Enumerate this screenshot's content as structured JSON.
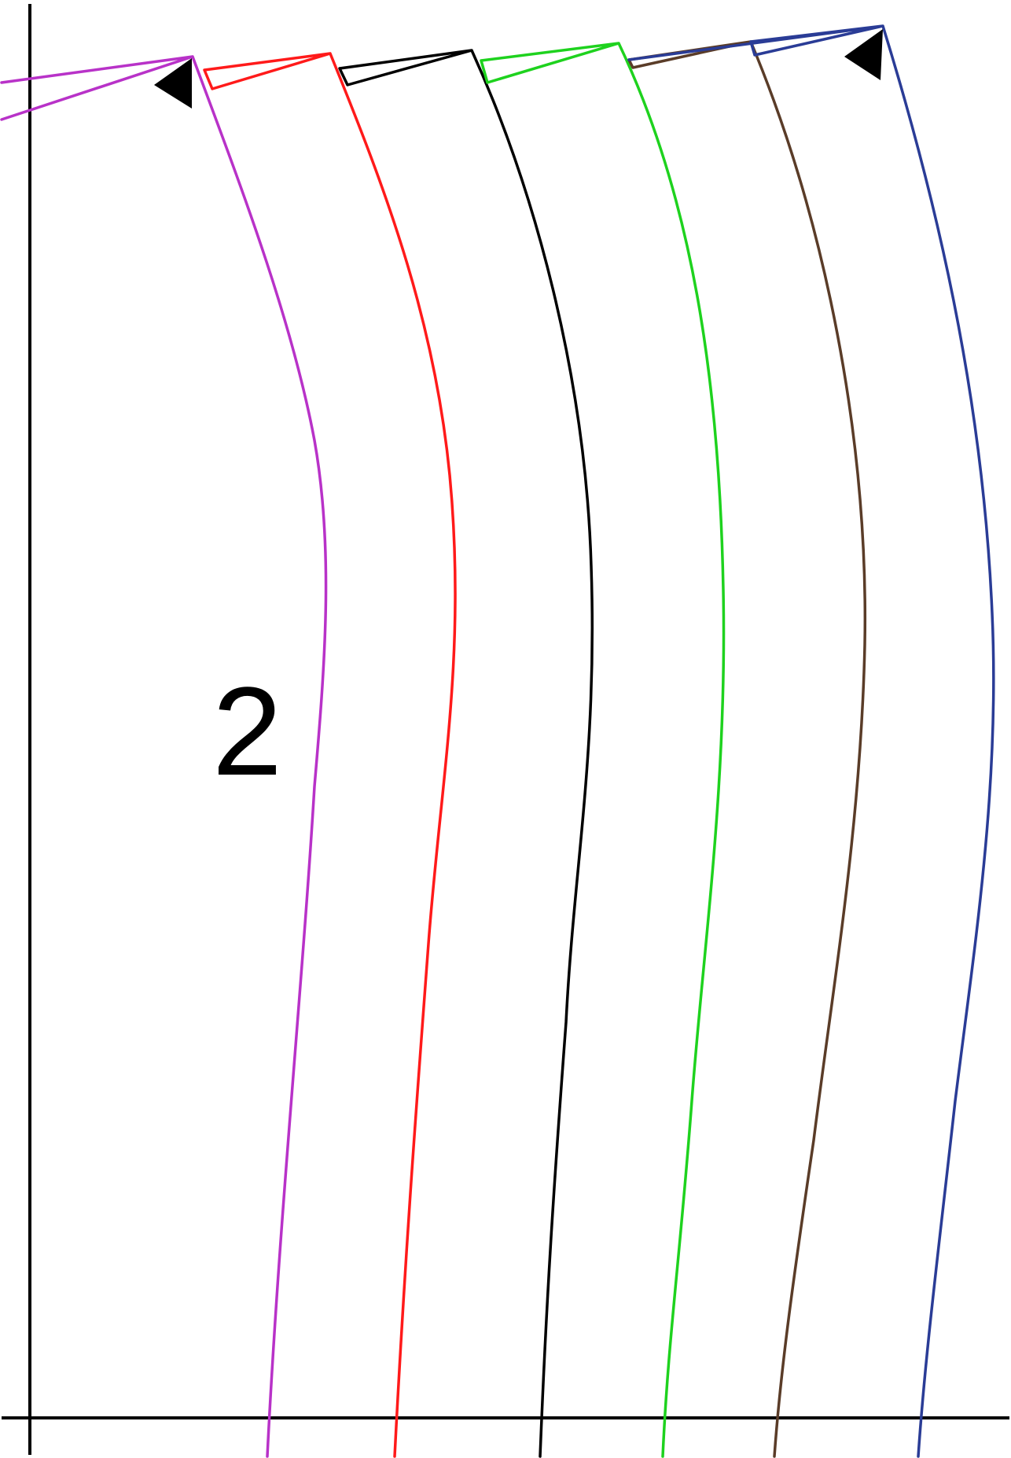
{
  "figure": {
    "label": "2"
  },
  "curves": [
    {
      "id": "magenta",
      "color": "#b832c8"
    },
    {
      "id": "red",
      "color": "#ff1a1a"
    },
    {
      "id": "black",
      "color": "#000000"
    },
    {
      "id": "green",
      "color": "#1ed21e"
    },
    {
      "id": "brown",
      "color": "#5a3c28"
    },
    {
      "id": "blue",
      "color": "#2a3c96"
    }
  ]
}
